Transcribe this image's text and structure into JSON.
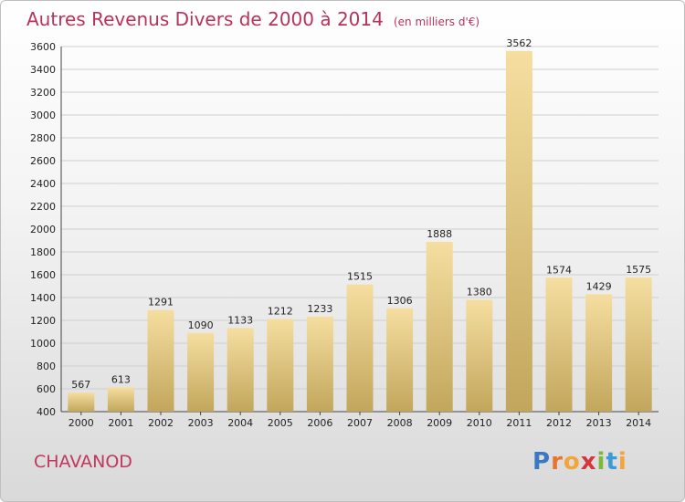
{
  "header": {
    "title": "Autres Revenus Divers de 2000 à 2014",
    "subtitle": "(en milliers d'€)"
  },
  "footer": {
    "town": "CHAVANOD",
    "logo": "Proxiti",
    "logo_letters": [
      {
        "ch": "P",
        "color": "#3a78c2"
      },
      {
        "ch": "r",
        "color": "#e8752d"
      },
      {
        "ch": "o",
        "color": "#f2a53b"
      },
      {
        "ch": "x",
        "color": "#d6363b"
      },
      {
        "ch": "i",
        "color": "#7cb83b"
      },
      {
        "ch": "t",
        "color": "#3a9bd6"
      },
      {
        "ch": "i",
        "color": "#f2a53b"
      }
    ]
  },
  "chart_data": {
    "type": "bar",
    "title": "Autres Revenus Divers de 2000 à 2014",
    "subtitle": "(en milliers d'€)",
    "categories": [
      "2000",
      "2001",
      "2002",
      "2003",
      "2004",
      "2005",
      "2006",
      "2007",
      "2008",
      "2009",
      "2010",
      "2011",
      "2012",
      "2013",
      "2014"
    ],
    "values": [
      567,
      613,
      1291,
      1090,
      1133,
      1212,
      1233,
      1515,
      1306,
      1888,
      1380,
      3562,
      1574,
      1429,
      1575
    ],
    "ylim": [
      400,
      3600
    ],
    "yticks": [
      400,
      600,
      800,
      1000,
      1200,
      1400,
      1600,
      1800,
      2000,
      2200,
      2400,
      2600,
      2800,
      3000,
      3200,
      3400,
      3600
    ],
    "grid": true,
    "colors": {
      "bar_light": "#f5dea0",
      "bar_dark": "#c2a65c",
      "grid": "#cfcfcf"
    }
  }
}
